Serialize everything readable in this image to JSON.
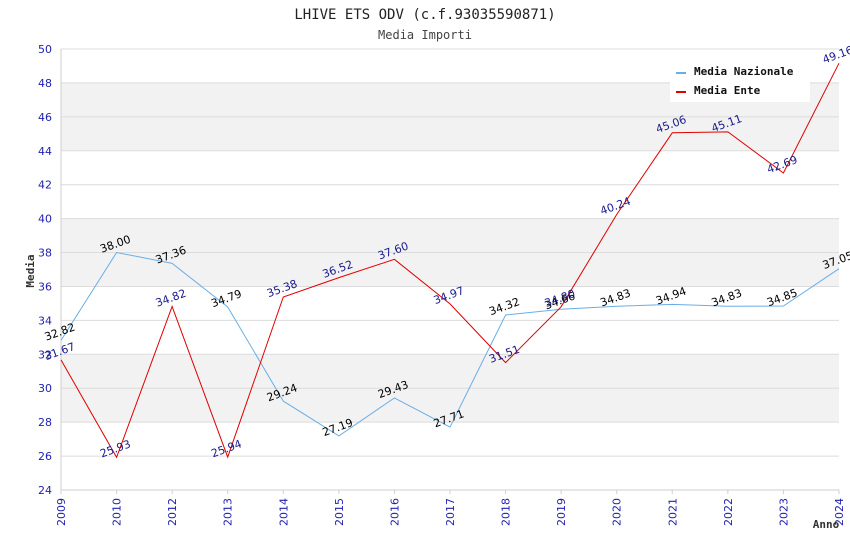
{
  "chart_data": {
    "type": "line",
    "title": "LHIVE ETS ODV (c.f.93035590871)",
    "subtitle": "Media Importi",
    "xlabel": "Anno",
    "ylabel": "Media",
    "ylim": [
      24,
      50
    ],
    "yticks": [
      "24",
      "26",
      "28",
      "30",
      "32",
      "34",
      "36",
      "38",
      "40",
      "42",
      "44",
      "46",
      "48",
      "50"
    ],
    "categories": [
      "2009",
      "2010",
      "2012",
      "2013",
      "2014",
      "2015",
      "2016",
      "2017",
      "2018",
      "2019",
      "2020",
      "2021",
      "2022",
      "2023",
      "2024"
    ],
    "grid": true,
    "legend_position": "top-right",
    "series": [
      {
        "name": "Media Nazionale",
        "color": "#6aaee6",
        "label_color": "#000000",
        "values": [
          32.82,
          38.0,
          37.36,
          34.79,
          29.24,
          27.19,
          29.43,
          27.71,
          34.32,
          34.66,
          34.83,
          34.94,
          34.83,
          34.85,
          37.05
        ],
        "labels": [
          "32.82",
          "38.00",
          "37.36",
          "34.79",
          "29.24",
          "27.19",
          "29.43",
          "27.71",
          "34.32",
          "34.66",
          "34.83",
          "34.94",
          "34.83",
          "34.85",
          "37.05"
        ]
      },
      {
        "name": "Media Ente",
        "color": "#e00000",
        "label_color": "#1a1a8c",
        "values": [
          31.67,
          25.93,
          34.82,
          25.94,
          35.38,
          36.52,
          37.6,
          34.97,
          31.51,
          34.8,
          40.24,
          45.06,
          45.11,
          42.69,
          49.16
        ],
        "labels": [
          "31.67",
          "25.93",
          "34.82",
          "25.94",
          "35.38",
          "36.52",
          "37.60",
          "34.97",
          "31.51",
          "34.80",
          "40.24",
          "45.06",
          "45.11",
          "42.69",
          "49.16"
        ]
      }
    ]
  }
}
